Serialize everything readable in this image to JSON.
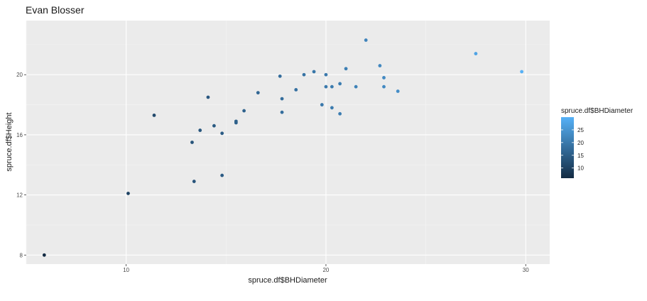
{
  "chart_data": {
    "type": "scatter",
    "title": "Evan Blosser",
    "xlabel": "spruce.df$BHDiameter",
    "ylabel": "spruce.df$Height",
    "xlim": [
      5,
      31.2
    ],
    "ylim": [
      7.4,
      23.6
    ],
    "x_ticks": [
      10,
      20,
      30
    ],
    "y_ticks": [
      8,
      12,
      16,
      20
    ],
    "grid": true,
    "legend": {
      "title": "spruce.df$BHDiameter",
      "placement": "right",
      "ticks": [
        10,
        15,
        20,
        25
      ],
      "range": [
        6,
        30
      ],
      "color_low": "#132b43",
      "color_high": "#56b1f7"
    },
    "points": [
      {
        "x": 5.9,
        "y": 8.0
      },
      {
        "x": 10.1,
        "y": 12.1
      },
      {
        "x": 11.4,
        "y": 17.3
      },
      {
        "x": 13.3,
        "y": 15.5
      },
      {
        "x": 13.4,
        "y": 12.9
      },
      {
        "x": 13.7,
        "y": 16.3
      },
      {
        "x": 14.1,
        "y": 18.5
      },
      {
        "x": 14.4,
        "y": 16.6
      },
      {
        "x": 14.8,
        "y": 16.1
      },
      {
        "x": 14.8,
        "y": 13.3
      },
      {
        "x": 15.5,
        "y": 16.8
      },
      {
        "x": 15.5,
        "y": 16.9
      },
      {
        "x": 15.9,
        "y": 17.6
      },
      {
        "x": 16.6,
        "y": 18.8
      },
      {
        "x": 17.7,
        "y": 19.9
      },
      {
        "x": 17.8,
        "y": 18.4
      },
      {
        "x": 17.8,
        "y": 17.5
      },
      {
        "x": 18.5,
        "y": 19.0
      },
      {
        "x": 18.9,
        "y": 20.0
      },
      {
        "x": 19.4,
        "y": 20.2
      },
      {
        "x": 19.8,
        "y": 18.0
      },
      {
        "x": 20.0,
        "y": 20.0
      },
      {
        "x": 20.0,
        "y": 19.2
      },
      {
        "x": 20.3,
        "y": 19.2
      },
      {
        "x": 20.3,
        "y": 17.8
      },
      {
        "x": 20.7,
        "y": 19.4
      },
      {
        "x": 20.7,
        "y": 17.4
      },
      {
        "x": 21.0,
        "y": 20.4
      },
      {
        "x": 21.5,
        "y": 19.2
      },
      {
        "x": 22.0,
        "y": 22.3
      },
      {
        "x": 22.7,
        "y": 20.6
      },
      {
        "x": 22.9,
        "y": 19.8
      },
      {
        "x": 22.9,
        "y": 19.2
      },
      {
        "x": 23.6,
        "y": 18.9
      },
      {
        "x": 27.5,
        "y": 21.4
      },
      {
        "x": 29.8,
        "y": 20.2
      }
    ]
  }
}
